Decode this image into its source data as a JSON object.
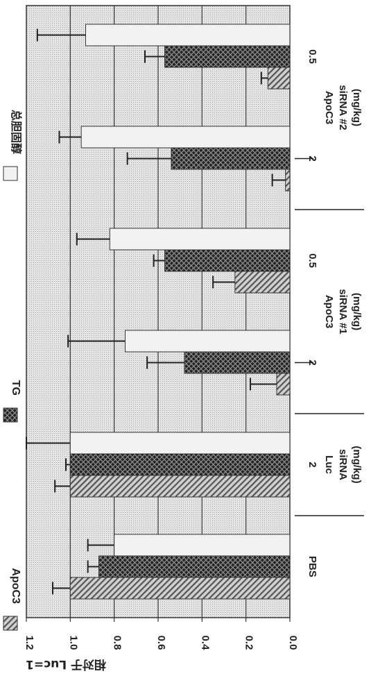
{
  "chart_data": {
    "type": "bar",
    "orientation": "rotated-90",
    "ylabel": "相对于 Luc=1",
    "ylim": [
      0,
      1.2
    ],
    "yticks": [
      "0.0",
      "0.2",
      "0.4",
      "0.6",
      "0.8",
      "1.0",
      "1.2"
    ],
    "grid": true,
    "legend_position": "top",
    "categories": [
      "PBS",
      "2",
      "2",
      "0.5",
      "2",
      "0.5"
    ],
    "groups": [
      {
        "label_lines": [],
        "members": [
          0
        ]
      },
      {
        "label_lines": [
          "Luc",
          "siRNA",
          "(mg/kg)"
        ],
        "members": [
          1
        ]
      },
      {
        "label_lines": [
          "ApoC3",
          "siRNA #1",
          "(mg/kg)"
        ],
        "members": [
          2,
          3
        ]
      },
      {
        "label_lines": [
          "ApoC3",
          "siRNA #2",
          "(mg/kg)"
        ],
        "members": [
          4,
          5
        ]
      }
    ],
    "series": [
      {
        "name": "ApoC3",
        "color": "#aaaaaa",
        "pattern": "diagonal-hatch",
        "values": [
          1.0,
          1.0,
          0.06,
          0.25,
          0.02,
          0.1
        ],
        "errors": [
          0.08,
          0.07,
          0.12,
          0.1,
          0.06,
          0.03
        ]
      },
      {
        "name": "TG",
        "color": "#444444",
        "pattern": "dark-crosshatch",
        "values": [
          0.87,
          1.0,
          0.48,
          0.57,
          0.54,
          0.57
        ],
        "errors": [
          0.05,
          0.02,
          0.17,
          0.05,
          0.2,
          0.09
        ]
      },
      {
        "name": "总胆固醇",
        "color": "#f2f2f2",
        "pattern": "none",
        "values": [
          0.8,
          1.0,
          0.75,
          0.82,
          0.95,
          0.93
        ],
        "errors": [
          0.12,
          0.2,
          0.26,
          0.15,
          0.1,
          0.22
        ]
      }
    ]
  }
}
